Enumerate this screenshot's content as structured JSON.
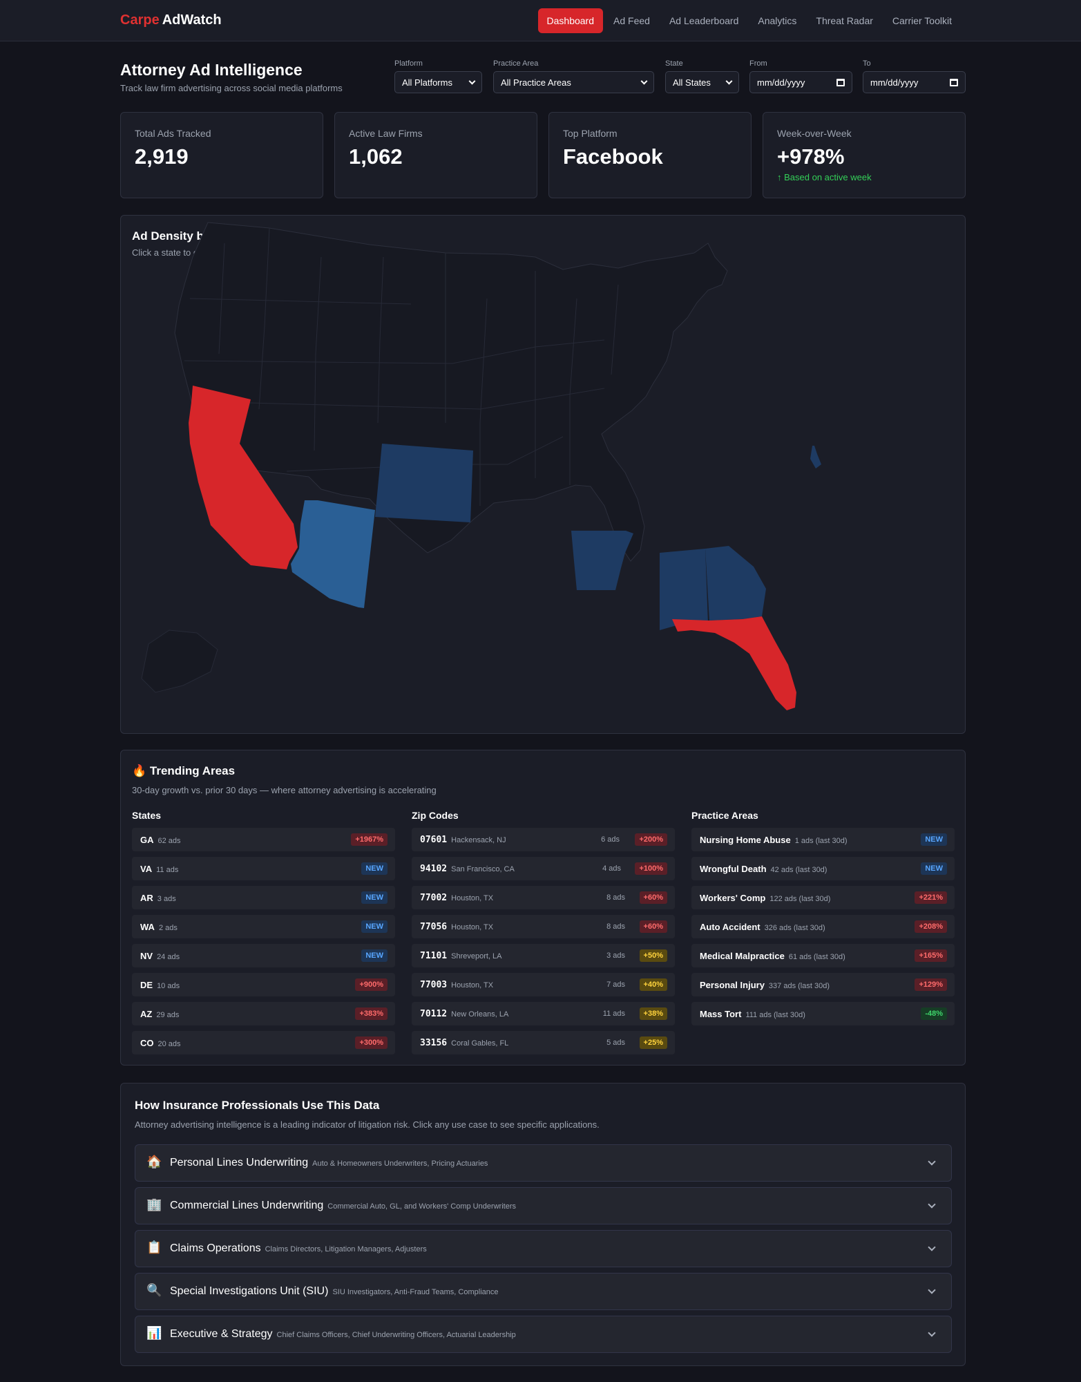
{
  "header": {
    "brand_1": "Carpe",
    "brand_2": "AdWatch",
    "nav": [
      "Dashboard",
      "Ad Feed",
      "Ad Leaderboard",
      "Analytics",
      "Threat Radar",
      "Carrier Toolkit"
    ],
    "active_nav": "Dashboard"
  },
  "page": {
    "title": "Attorney Ad Intelligence",
    "subtitle": "Track law firm advertising across social media platforms"
  },
  "filters": {
    "platform": {
      "label": "Platform",
      "value": "All Platforms"
    },
    "practice": {
      "label": "Practice Area",
      "value": "All Practice Areas"
    },
    "state": {
      "label": "State",
      "value": "All States"
    },
    "from": {
      "label": "From",
      "value": "mm/dd/yyyy"
    },
    "to": {
      "label": "To",
      "value": "mm/dd/yyyy"
    }
  },
  "stats": [
    {
      "label": "Total Ads Tracked",
      "value": "2,919"
    },
    {
      "label": "Active Law Firms",
      "value": "1,062"
    },
    {
      "label": "Top Platform",
      "value": "Facebook"
    },
    {
      "label": "Week-over-Week",
      "value": "+978%",
      "note": "↑ Based on active week"
    }
  ],
  "map": {
    "title": "Ad Density by State",
    "subtitle": "Click a state to drill down to zip codes.",
    "colors": {
      "high": "#d7262a",
      "mid": "#2a5f95",
      "low": "#1e3b63",
      "base": "#181a24",
      "border": "#2c2f3c"
    },
    "highlighted_states": {
      "CA": "high",
      "FL": "high",
      "AZ": "mid",
      "CO": "low",
      "AR": "low",
      "AL": "low",
      "GA": "low",
      "DE": "low"
    }
  },
  "trending": {
    "icon": "🔥",
    "title": "Trending Areas",
    "subtitle": "30-day growth vs. prior 30 days — where attorney advertising is accelerating",
    "states_title": "States",
    "zips_title": "Zip Codes",
    "practice_title": "Practice Areas",
    "states": [
      {
        "code": "GA",
        "ads": "62 ads",
        "badge": "+1967%",
        "kind": "red"
      },
      {
        "code": "VA",
        "ads": "11 ads",
        "badge": "NEW",
        "kind": "new"
      },
      {
        "code": "AR",
        "ads": "3 ads",
        "badge": "NEW",
        "kind": "new"
      },
      {
        "code": "WA",
        "ads": "2 ads",
        "badge": "NEW",
        "kind": "new"
      },
      {
        "code": "NV",
        "ads": "24 ads",
        "badge": "NEW",
        "kind": "new"
      },
      {
        "code": "DE",
        "ads": "10 ads",
        "badge": "+900%",
        "kind": "red"
      },
      {
        "code": "AZ",
        "ads": "29 ads",
        "badge": "+383%",
        "kind": "red"
      },
      {
        "code": "CO",
        "ads": "20 ads",
        "badge": "+300%",
        "kind": "red"
      }
    ],
    "zips": [
      {
        "zip": "07601",
        "city": "Hackensack, NJ",
        "ads": "6 ads",
        "badge": "+200%",
        "kind": "red"
      },
      {
        "zip": "94102",
        "city": "San Francisco, CA",
        "ads": "4 ads",
        "badge": "+100%",
        "kind": "red"
      },
      {
        "zip": "77002",
        "city": "Houston, TX",
        "ads": "8 ads",
        "badge": "+60%",
        "kind": "red"
      },
      {
        "zip": "77056",
        "city": "Houston, TX",
        "ads": "8 ads",
        "badge": "+60%",
        "kind": "red"
      },
      {
        "zip": "71101",
        "city": "Shreveport, LA",
        "ads": "3 ads",
        "badge": "+50%",
        "kind": "yel"
      },
      {
        "zip": "77003",
        "city": "Houston, TX",
        "ads": "7 ads",
        "badge": "+40%",
        "kind": "yel"
      },
      {
        "zip": "70112",
        "city": "New Orleans, LA",
        "ads": "11 ads",
        "badge": "+38%",
        "kind": "yel"
      },
      {
        "zip": "33156",
        "city": "Coral Gables, FL",
        "ads": "5 ads",
        "badge": "+25%",
        "kind": "yel"
      }
    ],
    "practice": [
      {
        "name": "Nursing Home Abuse",
        "ads": "1 ads (last 30d)",
        "badge": "NEW",
        "kind": "new"
      },
      {
        "name": "Wrongful Death",
        "ads": "42 ads (last 30d)",
        "badge": "NEW",
        "kind": "new"
      },
      {
        "name": "Workers' Comp",
        "ads": "122 ads (last 30d)",
        "badge": "+221%",
        "kind": "red"
      },
      {
        "name": "Auto Accident",
        "ads": "326 ads (last 30d)",
        "badge": "+208%",
        "kind": "red"
      },
      {
        "name": "Medical Malpractice",
        "ads": "61 ads (last 30d)",
        "badge": "+165%",
        "kind": "red"
      },
      {
        "name": "Personal Injury",
        "ads": "337 ads (last 30d)",
        "badge": "+129%",
        "kind": "red"
      },
      {
        "name": "Mass Tort",
        "ads": "111 ads (last 30d)",
        "badge": "-48%",
        "kind": "grn"
      }
    ]
  },
  "usecases": {
    "title": "How Insurance Professionals Use This Data",
    "subtitle": "Attorney advertising intelligence is a leading indicator of litigation risk. Click any use case to see specific applications.",
    "items": [
      {
        "icon": "🏠",
        "title": "Personal Lines Underwriting",
        "roles": "Auto & Homeowners Underwriters, Pricing Actuaries"
      },
      {
        "icon": "🏢",
        "title": "Commercial Lines Underwriting",
        "roles": "Commercial Auto, GL, and Workers' Comp Underwriters"
      },
      {
        "icon": "📋",
        "title": "Claims Operations",
        "roles": "Claims Directors, Litigation Managers, Adjusters"
      },
      {
        "icon": "🔍",
        "title": "Special Investigations Unit (SIU)",
        "roles": "SIU Investigators, Anti-Fraud Teams, Compliance"
      },
      {
        "icon": "📊",
        "title": "Executive & Strategy",
        "roles": "Chief Claims Officers, Chief Underwriting Officers, Actuarial Leadership"
      }
    ]
  }
}
